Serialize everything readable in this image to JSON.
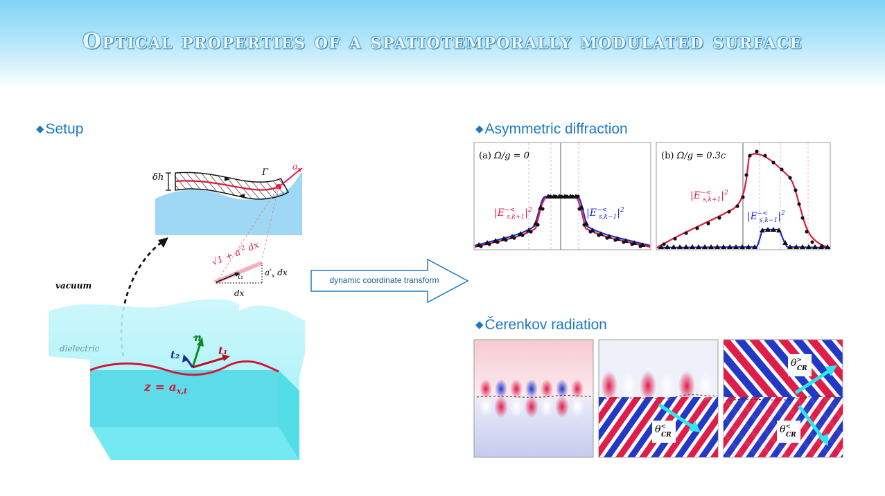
{
  "header": {
    "title": "Optical properties of a spatiotemporally modulated surface"
  },
  "sections": {
    "setup": "Setup",
    "diffraction": "Asymmetric diffraction",
    "cerenkov": "Čerenkov radiation"
  },
  "transform_label": "dynamic coordinate transform",
  "setup_labels": {
    "vacuum": "vacuum",
    "dielectric": "dielectric",
    "surface_eq": "z = a",
    "surface_sub": "x,t",
    "delta_h": "δh",
    "gamma": "Γ",
    "ax": "a",
    "ax_sub": "x",
    "sqrt_len": "1 + a′",
    "t1_small": "t₁",
    "a_dx": "a′",
    "a_dx_tail": "dx",
    "dx": "dx",
    "n_vec": "n",
    "t1_vec": "t₁",
    "t2_vec": "t₂"
  },
  "panels": [
    {
      "tag": "(a)",
      "formula": "Ω/g = 0",
      "left_label": "|E",
      "right_label": "|E"
    },
    {
      "tag": "(b)",
      "formula": "Ω/g = 0.3c",
      "left_label": "|E",
      "right_label": "|E"
    }
  ],
  "cr_labels": {
    "theta_lt": "θ",
    "theta_gt": "θ",
    "sub": "CR"
  },
  "colors": {
    "accent": "#1c7ac4",
    "red": "#e3173c",
    "blue": "#1e2bd8",
    "cyan": "#2ee6f0"
  }
}
